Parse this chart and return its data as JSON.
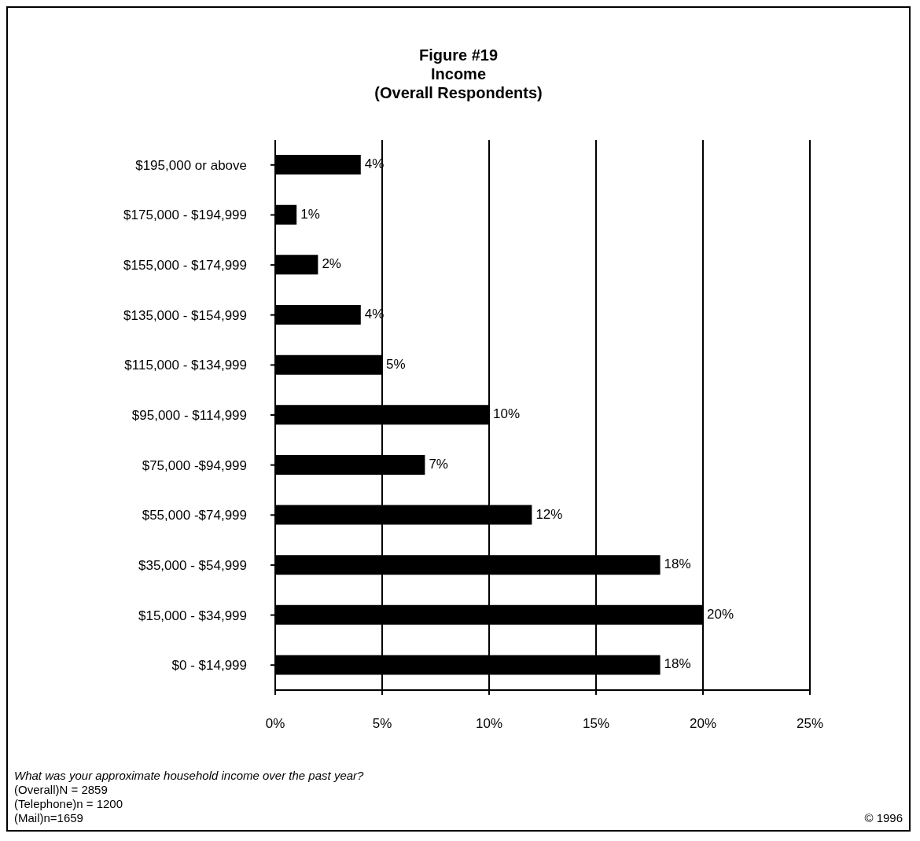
{
  "chart_data": {
    "type": "bar",
    "orientation": "horizontal",
    "title": "Figure #19\nIncome\n(Overall Respondents)",
    "categories": [
      "$195,000 or above",
      "$175,000 - $194,999",
      "$155,000 - $174,999",
      "$135,000 - $154,999",
      "$115,000 - $134,999",
      "$95,000 - $114,999",
      "$75,000 -$94,999",
      "$55,000 -$74,999",
      "$35,000 - $54,999",
      "$15,000 - $34,999",
      "$0 - $14,999"
    ],
    "values": [
      4,
      1,
      2,
      4,
      5,
      10,
      7,
      12,
      18,
      20,
      18
    ],
    "value_labels": [
      "4%",
      "1%",
      "2%",
      "4%",
      "5%",
      "10%",
      "7%",
      "12%",
      "18%",
      "20%",
      "18%"
    ],
    "color": "#000000",
    "xlim": [
      0,
      25
    ],
    "xticks": [
      {
        "value": 0,
        "label": "0%"
      },
      {
        "value": 5,
        "label": "5%"
      },
      {
        "value": 10,
        "label": "10%"
      },
      {
        "value": 15,
        "label": "15%"
      },
      {
        "value": 20,
        "label": "20%"
      },
      {
        "value": 25,
        "label": "25%"
      }
    ],
    "grid": "x",
    "legend": false,
    "annotations": [
      "What was your approximate household income over the past year?",
      "(Overall)N = 2859",
      "(Telephone)n = 1200",
      "(Mail)n=1659",
      "© 1996"
    ]
  }
}
